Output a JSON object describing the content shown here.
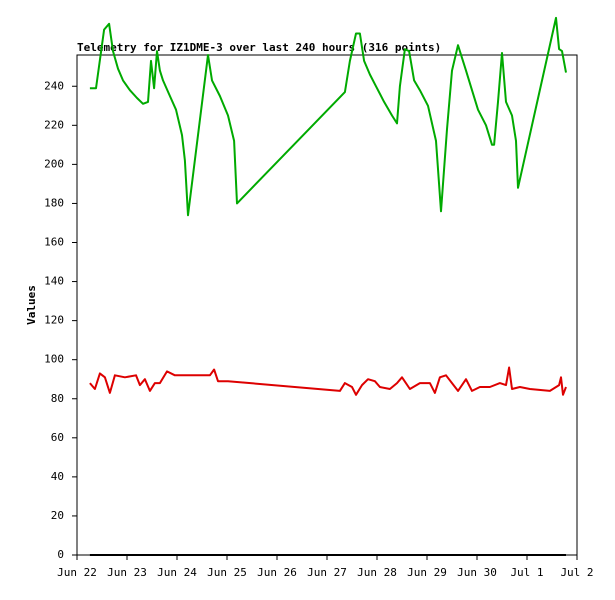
{
  "chart_data": {
    "type": "line",
    "title": "Telemetry for IZ1DME-3 over last 240 hours (316 points)",
    "y_label": "Values",
    "xlim": [
      0,
      240
    ],
    "ylim": [
      0,
      256
    ],
    "xticks": [
      {
        "value": 0,
        "label": "Jun 22"
      },
      {
        "value": 24,
        "label": "Jun 23"
      },
      {
        "value": 48,
        "label": "Jun 24"
      },
      {
        "value": 72,
        "label": "Jun 25"
      },
      {
        "value": 96,
        "label": "Jun 26"
      },
      {
        "value": 120,
        "label": "Jun 27"
      },
      {
        "value": 144,
        "label": "Jun 28"
      },
      {
        "value": 168,
        "label": "Jun 29"
      },
      {
        "value": 192,
        "label": "Jun 30"
      },
      {
        "value": 216,
        "label": "Jul 1"
      },
      {
        "value": 240,
        "label": "Jul 2"
      }
    ],
    "yticks": [
      0,
      20,
      40,
      60,
      80,
      100,
      120,
      140,
      160,
      180,
      200,
      220,
      240
    ],
    "series": [
      {
        "color": "#00aa00",
        "x": [
          6.2,
          9.1,
          13.0,
          15.4,
          17.3,
          19.7,
          22.1,
          25.4,
          28.8,
          31.7,
          34.1,
          35.5,
          37.0,
          38.4,
          39.8,
          41.3,
          44.6,
          47.5,
          50.4,
          51.8,
          53.3,
          62.9,
          64.8,
          68.6,
          72.5,
          75.4,
          76.8,
          128.6,
          131.0,
          133.9,
          135.8,
          137.8,
          140.6,
          143.5,
          147.4,
          151.2,
          153.6,
          155.0,
          157.4,
          159.4,
          161.8,
          164.6,
          168.5,
          172.3,
          174.7,
          177.6,
          180.0,
          182.9,
          186.7,
          189.6,
          192.5,
          196.3,
          199.2,
          200.2,
          202.1,
          204.0,
          205.9,
          208.8,
          210.7,
          211.7,
          229.9,
          231.4,
          232.8,
          234.7
        ],
        "values": [
          239,
          239,
          269,
          272,
          258,
          249,
          243,
          238,
          234,
          231,
          232,
          253,
          239,
          258,
          248,
          243,
          235,
          228,
          215,
          202,
          174,
          256,
          243,
          235,
          225,
          212,
          180,
          237,
          253,
          267,
          267,
          253,
          246,
          240,
          232,
          225,
          221,
          240,
          259,
          258,
          243,
          238,
          230,
          212,
          176,
          218,
          248,
          261,
          248,
          238,
          228,
          220,
          210,
          210,
          232,
          257,
          232,
          225,
          212,
          188,
          275,
          259,
          258,
          247
        ]
      },
      {
        "color": "#dd0000",
        "x": [
          6.2,
          8.6,
          11.0,
          13.4,
          15.8,
          18.2,
          23.0,
          28.3,
          30.2,
          32.6,
          35.0,
          37.4,
          39.8,
          43.2,
          47.0,
          54.2,
          63.8,
          65.8,
          67.7,
          72.5,
          126.2,
          128.6,
          132.0,
          133.9,
          136.8,
          139.7,
          143.0,
          145.4,
          150.2,
          153.6,
          156.0,
          159.8,
          164.6,
          169.4,
          171.8,
          174.2,
          177.1,
          180.0,
          182.9,
          186.7,
          189.6,
          193.4,
          198.2,
          203.0,
          205.9,
          207.4,
          208.8,
          212.6,
          217.4,
          227.0,
          231.4,
          232.3,
          233.3,
          234.7
        ],
        "values": [
          88,
          85,
          93,
          91,
          83,
          92,
          91,
          92,
          87,
          90,
          84,
          88,
          88,
          94,
          92,
          92,
          92,
          95,
          89,
          89,
          84,
          88,
          86,
          82,
          87,
          90,
          89,
          86,
          85,
          88,
          91,
          85,
          88,
          88,
          83,
          91,
          92,
          88,
          84,
          90,
          84,
          86,
          86,
          88,
          87,
          96,
          85,
          86,
          85,
          84,
          87,
          91,
          82,
          86
        ]
      },
      {
        "color": "#000000",
        "x": [
          6.2,
          234.7
        ],
        "values": [
          0,
          0
        ]
      }
    ]
  }
}
